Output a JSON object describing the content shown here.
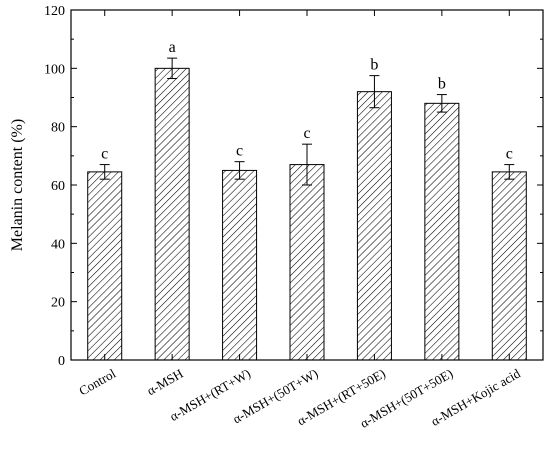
{
  "chart_data": {
    "type": "bar",
    "title": "",
    "xlabel": "",
    "ylabel": "Melanin content (%)",
    "ylim": [
      0,
      120
    ],
    "yticks": [
      0,
      20,
      40,
      60,
      80,
      100,
      120
    ],
    "grid": false,
    "bar_fill": "diagonal-hatch",
    "bar_color": "#000000",
    "categories": [
      "Control",
      "α-MSH",
      "α-MSH+(RT+W)",
      "α-MSH+(50T+W)",
      "α-MSH+(RT+50E)",
      "α-MSH+(50T+50E)",
      "α-MSH+Kojic acid"
    ],
    "values": [
      64.5,
      100,
      65,
      67,
      92,
      88,
      64.5
    ],
    "errors": [
      2.5,
      3.5,
      3,
      7,
      5.5,
      3,
      2.5
    ],
    "significance_labels": [
      "c",
      "a",
      "c",
      "c",
      "b",
      "b",
      "c"
    ]
  }
}
